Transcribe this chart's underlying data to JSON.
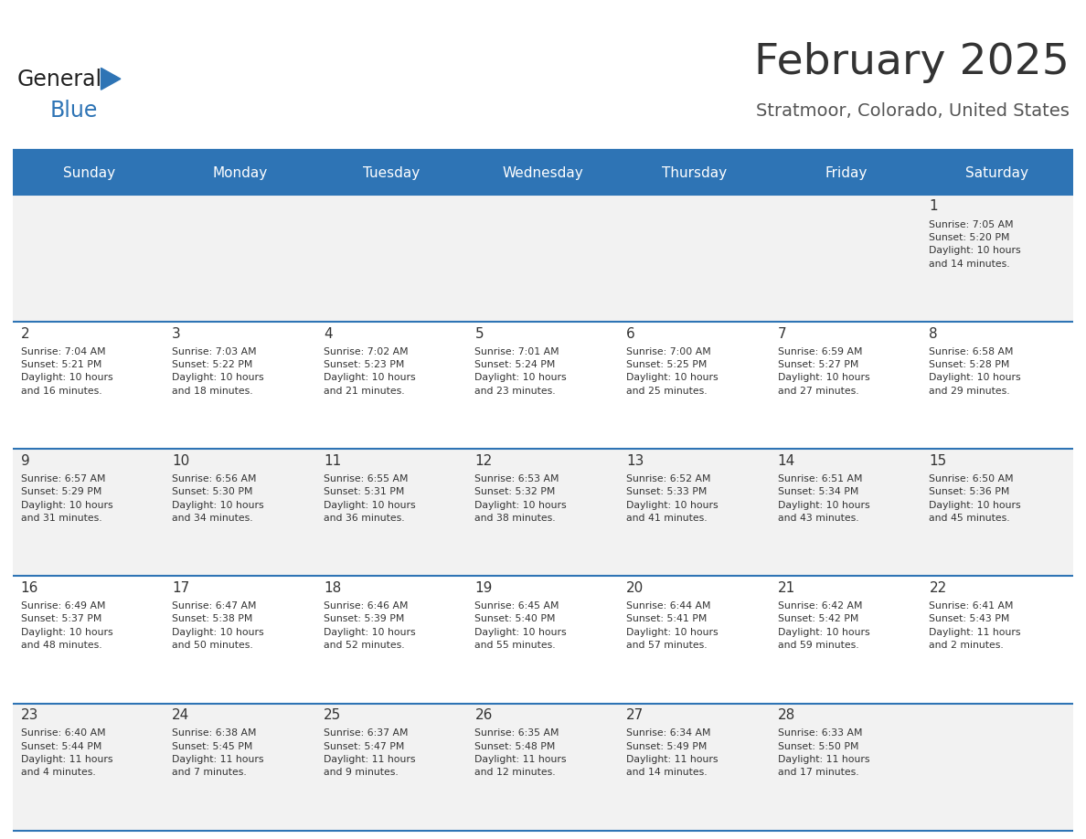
{
  "title": "February 2025",
  "subtitle": "Stratmoor, Colorado, United States",
  "header_bg": "#2E74B5",
  "header_text": "#FFFFFF",
  "header_days": [
    "Sunday",
    "Monday",
    "Tuesday",
    "Wednesday",
    "Thursday",
    "Friday",
    "Saturday"
  ],
  "cell_bg_odd": "#F2F2F2",
  "cell_bg_even": "#FFFFFF",
  "border_color": "#2E74B5",
  "text_color": "#333333",
  "title_color": "#333333",
  "subtitle_color": "#555555",
  "logo_color_general": "#222222",
  "logo_color_blue": "#2E74B5",
  "logo_triangle_color": "#2E74B5",
  "calendar_data": [
    [
      "",
      "",
      "",
      "",
      "",
      "",
      "1\nSunrise: 7:05 AM\nSunset: 5:20 PM\nDaylight: 10 hours\nand 14 minutes."
    ],
    [
      "2\nSunrise: 7:04 AM\nSunset: 5:21 PM\nDaylight: 10 hours\nand 16 minutes.",
      "3\nSunrise: 7:03 AM\nSunset: 5:22 PM\nDaylight: 10 hours\nand 18 minutes.",
      "4\nSunrise: 7:02 AM\nSunset: 5:23 PM\nDaylight: 10 hours\nand 21 minutes.",
      "5\nSunrise: 7:01 AM\nSunset: 5:24 PM\nDaylight: 10 hours\nand 23 minutes.",
      "6\nSunrise: 7:00 AM\nSunset: 5:25 PM\nDaylight: 10 hours\nand 25 minutes.",
      "7\nSunrise: 6:59 AM\nSunset: 5:27 PM\nDaylight: 10 hours\nand 27 minutes.",
      "8\nSunrise: 6:58 AM\nSunset: 5:28 PM\nDaylight: 10 hours\nand 29 minutes."
    ],
    [
      "9\nSunrise: 6:57 AM\nSunset: 5:29 PM\nDaylight: 10 hours\nand 31 minutes.",
      "10\nSunrise: 6:56 AM\nSunset: 5:30 PM\nDaylight: 10 hours\nand 34 minutes.",
      "11\nSunrise: 6:55 AM\nSunset: 5:31 PM\nDaylight: 10 hours\nand 36 minutes.",
      "12\nSunrise: 6:53 AM\nSunset: 5:32 PM\nDaylight: 10 hours\nand 38 minutes.",
      "13\nSunrise: 6:52 AM\nSunset: 5:33 PM\nDaylight: 10 hours\nand 41 minutes.",
      "14\nSunrise: 6:51 AM\nSunset: 5:34 PM\nDaylight: 10 hours\nand 43 minutes.",
      "15\nSunrise: 6:50 AM\nSunset: 5:36 PM\nDaylight: 10 hours\nand 45 minutes."
    ],
    [
      "16\nSunrise: 6:49 AM\nSunset: 5:37 PM\nDaylight: 10 hours\nand 48 minutes.",
      "17\nSunrise: 6:47 AM\nSunset: 5:38 PM\nDaylight: 10 hours\nand 50 minutes.",
      "18\nSunrise: 6:46 AM\nSunset: 5:39 PM\nDaylight: 10 hours\nand 52 minutes.",
      "19\nSunrise: 6:45 AM\nSunset: 5:40 PM\nDaylight: 10 hours\nand 55 minutes.",
      "20\nSunrise: 6:44 AM\nSunset: 5:41 PM\nDaylight: 10 hours\nand 57 minutes.",
      "21\nSunrise: 6:42 AM\nSunset: 5:42 PM\nDaylight: 10 hours\nand 59 minutes.",
      "22\nSunrise: 6:41 AM\nSunset: 5:43 PM\nDaylight: 11 hours\nand 2 minutes."
    ],
    [
      "23\nSunrise: 6:40 AM\nSunset: 5:44 PM\nDaylight: 11 hours\nand 4 minutes.",
      "24\nSunrise: 6:38 AM\nSunset: 5:45 PM\nDaylight: 11 hours\nand 7 minutes.",
      "25\nSunrise: 6:37 AM\nSunset: 5:47 PM\nDaylight: 11 hours\nand 9 minutes.",
      "26\nSunrise: 6:35 AM\nSunset: 5:48 PM\nDaylight: 11 hours\nand 12 minutes.",
      "27\nSunrise: 6:34 AM\nSunset: 5:49 PM\nDaylight: 11 hours\nand 14 minutes.",
      "28\nSunrise: 6:33 AM\nSunset: 5:50 PM\nDaylight: 11 hours\nand 17 minutes.",
      ""
    ]
  ]
}
